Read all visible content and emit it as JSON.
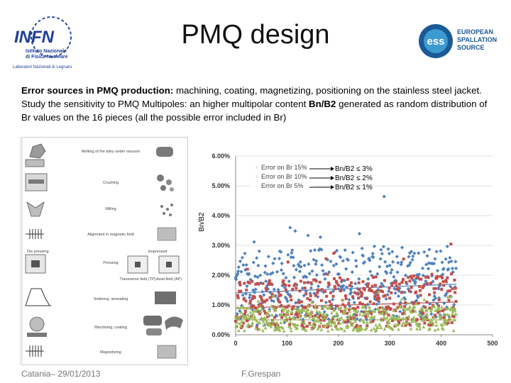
{
  "header": {
    "title": "PMQ design",
    "infn_logo": {
      "name": "INFN",
      "line1": "Istituto Nazionale",
      "line2": "di Fisica Nucleare",
      "line3": "Laboratori Nazionali di Legnaro"
    },
    "ess_logo": {
      "mark": "ess",
      "line1": "EUROPEAN",
      "line2": "SPALLATION",
      "line3": "SOURCE"
    }
  },
  "body": {
    "line1_bold": "Error sources in PMQ production:",
    "line1_rest": " machining, coating, magnetizing, positioning on the stainless steel jacket.",
    "line2_start": "Study the sensitivity to PMQ Multipoles: an higher multipolar content ",
    "line2_bold": "Bn/B2",
    "line2_end": " generated as random distribution of Br values on the 16 pieces (all the possible error included in Br)"
  },
  "process_panel": {
    "steps": [
      "Melting of the alloy under vacuum",
      "Crushing",
      "Milling",
      "Alignment in magnetic field",
      "Pressing",
      "Sintering, annealing",
      "Machining, coating",
      "Magnetizing"
    ],
    "die_press_label": "Die pressing",
    "iso_press_label": "Isopressed",
    "transverse_label": "Transverse field (TP)",
    "axial_label": "Axial field (AP)"
  },
  "chart_data": {
    "type": "scatter",
    "ylabel": "Bn/B2",
    "xlim": [
      0,
      500
    ],
    "ylim": [
      0,
      0.06
    ],
    "x_ticks": [
      "0",
      "100",
      "200",
      "300",
      "400",
      "500"
    ],
    "y_ticks": [
      "0.00%",
      "1.00%",
      "2.00%",
      "3.00%",
      "4.00%",
      "5.00%",
      "6.00%"
    ],
    "legend_position": "top-left",
    "series": [
      {
        "name": "Error on Br 15%",
        "color": "#4f81bd",
        "marker": "diamond",
        "trend": [
          0.014,
          0.017
        ],
        "spread": 0.012,
        "n": 430
      },
      {
        "name": "Error on Br 10%",
        "color": "#c0504d",
        "marker": "square",
        "trend": [
          0.009,
          0.011
        ],
        "spread": 0.008,
        "n": 430
      },
      {
        "name": "Error on Br 5%",
        "color": "#9bbb59",
        "marker": "triangle",
        "trend": [
          0.005,
          0.005
        ],
        "spread": 0.004,
        "n": 430
      }
    ],
    "annotations": [
      "Bn/B2 ≤ 3%",
      "Bn/B2 ≤ 2%",
      "Bn/B2 ≤ 1%"
    ]
  },
  "footer": {
    "left": "Catania– 29/01/2013",
    "center": "F.Grespan"
  }
}
